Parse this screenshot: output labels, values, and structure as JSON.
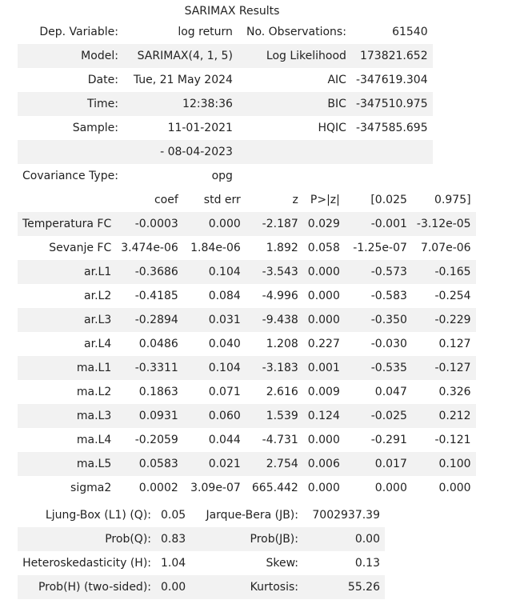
{
  "caption": "SARIMAX Results",
  "summary": {
    "rows": [
      [
        "Dep. Variable:",
        "log return",
        "No. Observations:",
        "61540"
      ],
      [
        "Model:",
        "SARIMAX(4, 1, 5)",
        "Log Likelihood",
        "173821.652"
      ],
      [
        "Date:",
        "Tue, 21 May 2024",
        "AIC",
        "-347619.304"
      ],
      [
        "Time:",
        "12:38:36",
        "BIC",
        "-347510.975"
      ],
      [
        "Sample:",
        "11-01-2021",
        "HQIC",
        "-347585.695"
      ],
      [
        "",
        "- 08-04-2023",
        "",
        ""
      ],
      [
        "Covariance Type:",
        "opg",
        "",
        ""
      ]
    ]
  },
  "coefficients": {
    "header": [
      "",
      "coef",
      "std err",
      "z",
      "P>|z|",
      "[0.025",
      "0.975]"
    ],
    "rows": [
      [
        "Temperatura FC",
        "-0.0003",
        "0.000",
        "-2.187",
        "0.029",
        "-0.001",
        "-3.12e-05"
      ],
      [
        "Sevanje FC",
        "3.474e-06",
        "1.84e-06",
        "1.892",
        "0.058",
        "-1.25e-07",
        "7.07e-06"
      ],
      [
        "ar.L1",
        "-0.3686",
        "0.104",
        "-3.543",
        "0.000",
        "-0.573",
        "-0.165"
      ],
      [
        "ar.L2",
        "-0.4185",
        "0.084",
        "-4.996",
        "0.000",
        "-0.583",
        "-0.254"
      ],
      [
        "ar.L3",
        "-0.2894",
        "0.031",
        "-9.438",
        "0.000",
        "-0.350",
        "-0.229"
      ],
      [
        "ar.L4",
        "0.0486",
        "0.040",
        "1.208",
        "0.227",
        "-0.030",
        "0.127"
      ],
      [
        "ma.L1",
        "-0.3311",
        "0.104",
        "-3.183",
        "0.001",
        "-0.535",
        "-0.127"
      ],
      [
        "ma.L2",
        "0.1863",
        "0.071",
        "2.616",
        "0.009",
        "0.047",
        "0.326"
      ],
      [
        "ma.L3",
        "0.0931",
        "0.060",
        "1.539",
        "0.124",
        "-0.025",
        "0.212"
      ],
      [
        "ma.L4",
        "-0.2059",
        "0.044",
        "-4.731",
        "0.000",
        "-0.291",
        "-0.121"
      ],
      [
        "ma.L5",
        "0.0583",
        "0.021",
        "2.754",
        "0.006",
        "0.017",
        "0.100"
      ],
      [
        "sigma2",
        "0.0002",
        "3.09e-07",
        "665.442",
        "0.000",
        "0.000",
        "0.000"
      ]
    ]
  },
  "diagnostics": {
    "rows": [
      [
        "Ljung-Box (L1) (Q):",
        "0.05",
        "Jarque-Bera (JB):",
        "7002937.39"
      ],
      [
        "Prob(Q):",
        "0.83",
        "Prob(JB):",
        "0.00"
      ],
      [
        "Heteroskedasticity (H):",
        "1.04",
        "Skew:",
        "0.13"
      ],
      [
        "Prob(H) (two-sided):",
        "0.00",
        "Kurtosis:",
        "55.26"
      ]
    ]
  }
}
